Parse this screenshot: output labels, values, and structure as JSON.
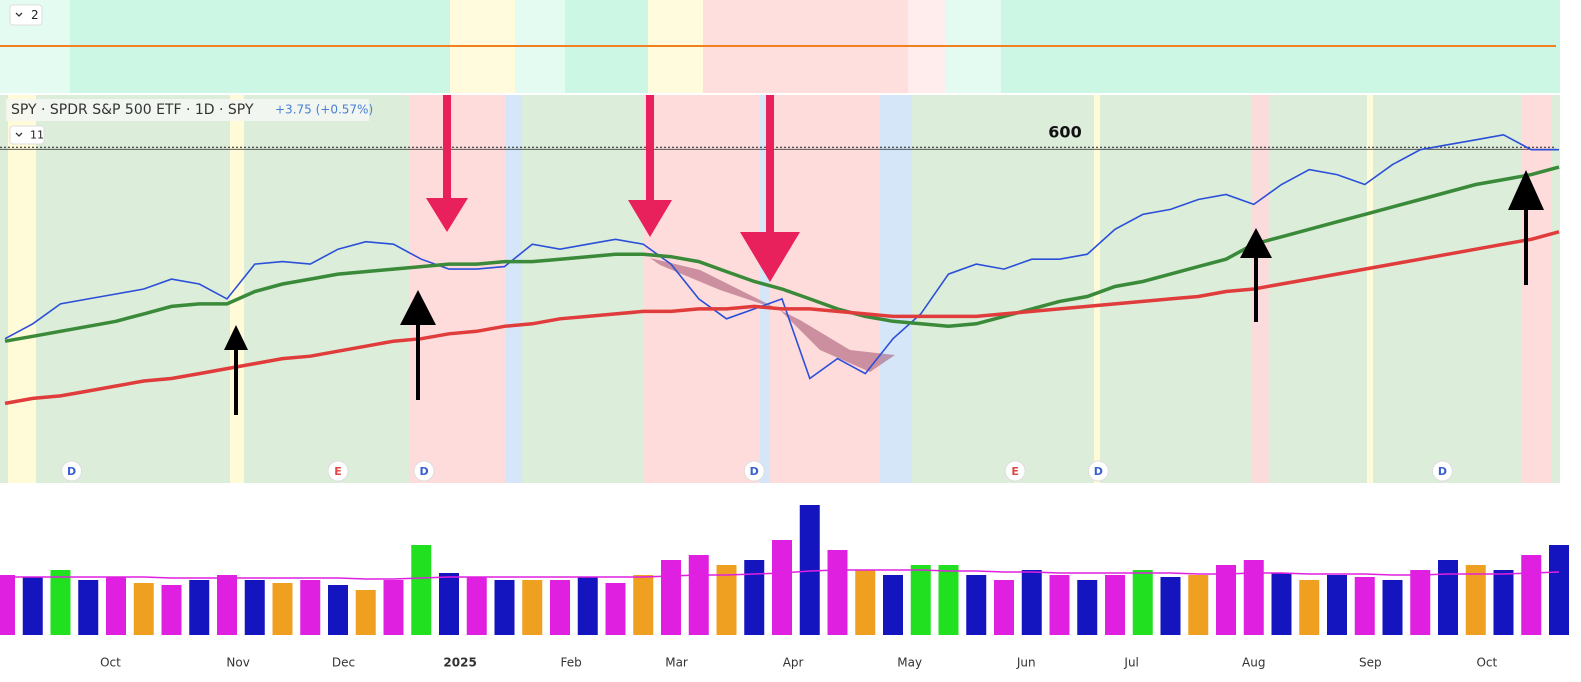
{
  "header": {
    "indicator_pane": "2",
    "price_pane": "11"
  },
  "chart_data": [
    {
      "type": "line",
      "title": "SPY · SPDR S&P 500 ETF · 1D · SPY",
      "subtitle": "+3.75 (+0.57%)",
      "x": [
        0,
        5,
        10,
        15,
        20,
        25,
        30,
        35,
        40,
        45,
        50,
        55,
        60,
        65,
        70,
        75,
        80,
        85,
        90,
        95,
        100,
        105,
        110,
        115,
        120,
        125,
        130,
        135,
        140,
        145,
        150,
        155,
        160,
        165,
        170,
        175,
        180,
        185,
        190,
        195,
        200,
        205,
        210,
        215,
        220,
        225,
        230,
        235,
        240,
        245,
        250,
        255,
        260,
        265,
        270,
        275,
        280
      ],
      "series": [
        {
          "color": "#2b4fd8",
          "values": [
            523,
            529,
            537,
            539,
            541,
            543,
            547,
            545,
            539,
            553,
            554,
            553,
            559,
            562,
            561,
            555,
            551,
            551,
            552,
            561,
            559,
            561,
            563,
            561,
            553,
            539,
            531,
            535,
            539,
            507,
            515,
            509,
            523,
            533,
            549,
            553,
            551,
            555,
            555,
            557,
            567,
            573,
            575,
            579,
            581,
            577,
            585,
            591,
            589,
            585,
            593,
            599,
            601,
            603,
            605,
            599,
            599
          ]
        },
        {
          "color": "#3a8a3a",
          "values": [
            522,
            524,
            526,
            528,
            530,
            533,
            536,
            537,
            537,
            542,
            545,
            547,
            549,
            550,
            551,
            552,
            553,
            553,
            554,
            554,
            555,
            556,
            557,
            557,
            556,
            554,
            550,
            546,
            543,
            539,
            535,
            532,
            530,
            529,
            528,
            529,
            532,
            535,
            538,
            540,
            544,
            546,
            549,
            552,
            555,
            561,
            564,
            567,
            570,
            573,
            576,
            579,
            582,
            585,
            587,
            589,
            592
          ]
        },
        {
          "color": "#e03c3c",
          "values": [
            497,
            499,
            500,
            502,
            504,
            506,
            507,
            509,
            511,
            513,
            515,
            516,
            518,
            520,
            522,
            523,
            525,
            526,
            528,
            529,
            531,
            532,
            533,
            534,
            534,
            535,
            535,
            536,
            535,
            535,
            534,
            533,
            532,
            532,
            532,
            532,
            533,
            534,
            535,
            536,
            537,
            538,
            539,
            540,
            542,
            543,
            545,
            547,
            549,
            551,
            553,
            555,
            557,
            559,
            561,
            563,
            566
          ]
        }
      ],
      "annotations": [
        {
          "label": "600",
          "y": 600
        }
      ],
      "event_badges": [
        {
          "label": "D",
          "x": 12,
          "color": "#3a5fd0"
        },
        {
          "label": "E",
          "x": 60,
          "color": "#e04848"
        },
        {
          "label": "D",
          "x": 75.5,
          "color": "#3a5fd0"
        },
        {
          "label": "D",
          "x": 135,
          "color": "#3a5fd0"
        },
        {
          "label": "E",
          "x": 182,
          "color": "#e04848"
        },
        {
          "label": "D",
          "x": 197,
          "color": "#3a5fd0"
        },
        {
          "label": "D",
          "x": 259,
          "color": "#3a5fd0"
        }
      ],
      "xlim": [
        0,
        280
      ],
      "ylim": [
        465,
        621
      ],
      "xticks": [
        {
          "value": 19,
          "label": "Oct"
        },
        {
          "value": 42,
          "label": "Nov"
        },
        {
          "value": 61,
          "label": "Dec"
        },
        {
          "value": 82,
          "label": "2025"
        },
        {
          "value": 102,
          "label": "Feb"
        },
        {
          "value": 121,
          "label": "Mar"
        },
        {
          "value": 142,
          "label": "Apr"
        },
        {
          "value": 163,
          "label": "May"
        },
        {
          "value": 184,
          "label": "Jun"
        },
        {
          "value": 203,
          "label": "Jul"
        },
        {
          "value": 225,
          "label": "Aug"
        },
        {
          "value": 246,
          "label": "Sep"
        },
        {
          "value": 267,
          "label": "Oct"
        }
      ]
    },
    {
      "type": "bar",
      "x": [
        0,
        5,
        10,
        15,
        20,
        25,
        30,
        35,
        40,
        45,
        50,
        55,
        60,
        65,
        70,
        75,
        80,
        85,
        90,
        95,
        100,
        105,
        110,
        115,
        120,
        125,
        130,
        135,
        140,
        145,
        150,
        155,
        160,
        165,
        170,
        175,
        180,
        185,
        190,
        195,
        200,
        205,
        210,
        215,
        220,
        225,
        230,
        235,
        240,
        245,
        250,
        255,
        260,
        265,
        270,
        275,
        280
      ],
      "values": [
        60,
        58,
        65,
        55,
        58,
        52,
        50,
        55,
        60,
        55,
        52,
        55,
        50,
        45,
        55,
        90,
        62,
        58,
        55,
        55,
        55,
        58,
        52,
        60,
        75,
        80,
        70,
        75,
        95,
        130,
        85,
        65,
        60,
        70,
        70,
        60,
        55,
        65,
        60,
        55,
        60,
        65,
        58,
        60,
        70,
        75,
        62,
        55,
        60,
        58,
        55,
        65,
        75,
        70,
        65,
        80,
        90
      ],
      "colors": [
        "#e020e0",
        "#1515c0",
        "#20e020",
        "#1515c0",
        "#e020e0",
        "#f0a020",
        "#e020e0",
        "#1515c0",
        "#e020e0",
        "#1515c0",
        "#f0a020",
        "#e020e0",
        "#1515c0",
        "#f0a020",
        "#e020e0",
        "#20e020",
        "#1515c0",
        "#e020e0",
        "#1515c0",
        "#f0a020",
        "#e020e0",
        "#1515c0",
        "#e020e0",
        "#f0a020",
        "#e020e0",
        "#e020e0",
        "#f0a020",
        "#1515c0",
        "#e020e0",
        "#1515c0",
        "#e020e0",
        "#f0a020",
        "#1515c0",
        "#20e020",
        "#20e020",
        "#1515c0",
        "#e020e0",
        "#1515c0",
        "#e020e0",
        "#1515c0",
        "#e020e0",
        "#20e020",
        "#1515c0",
        "#f0a020",
        "#e020e0",
        "#e020e0",
        "#1515c0",
        "#f0a020",
        "#1515c0",
        "#e020e0",
        "#1515c0",
        "#e020e0",
        "#1515c0",
        "#f0a020",
        "#1515c0",
        "#e020e0",
        "#1515c0"
      ],
      "average": [
        58,
        58,
        58,
        58,
        58,
        58,
        57,
        57,
        57,
        57,
        57,
        57,
        57,
        56,
        56,
        57,
        58,
        58,
        58,
        58,
        58,
        58,
        58,
        58,
        59,
        60,
        60,
        61,
        62,
        64,
        65,
        65,
        65,
        65,
        64,
        64,
        63,
        63,
        62,
        62,
        62,
        62,
        62,
        61,
        61,
        62,
        62,
        61,
        61,
        61,
        60,
        60,
        61,
        61,
        61,
        62,
        63
      ],
      "color": "#e020e0",
      "ylim": [
        0,
        140
      ]
    }
  ]
}
